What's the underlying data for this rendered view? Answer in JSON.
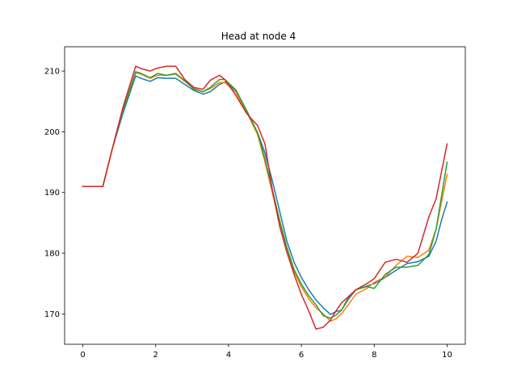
{
  "chart_data": {
    "type": "line",
    "title": "Head at node 4",
    "xlabel": "",
    "ylabel": "",
    "xlim": [
      -0.5,
      10.5
    ],
    "ylim": [
      165,
      214
    ],
    "xticks": [
      0,
      2,
      4,
      6,
      8,
      10
    ],
    "yticks": [
      170,
      180,
      190,
      200,
      210
    ],
    "grid": false,
    "series": [
      {
        "color": "#1f77b4",
        "x": [
          0,
          0.55,
          0.8,
          1.1,
          1.45,
          1.6,
          1.85,
          2.05,
          2.3,
          2.55,
          2.8,
          3.05,
          3.3,
          3.5,
          3.75,
          3.9,
          4.2,
          4.5,
          4.8,
          5.0,
          5.2,
          5.4,
          5.6,
          5.8,
          6.0,
          6.2,
          6.4,
          6.6,
          6.8,
          6.95,
          7.1,
          7.3,
          7.5,
          7.8,
          8.0,
          8.3,
          8.6,
          8.9,
          9.2,
          9.5,
          9.7,
          9.85,
          10.0
        ],
        "values": [
          191,
          191,
          197,
          203,
          209.2,
          208.8,
          208.3,
          208.9,
          208.8,
          208.8,
          207.8,
          206.8,
          206.2,
          206.6,
          207.8,
          208.2,
          206.8,
          203.5,
          199.8,
          196.5,
          192,
          187,
          182,
          178.5,
          176,
          174,
          172.3,
          171,
          169.9,
          170.4,
          170.6,
          172.5,
          174,
          174.6,
          175,
          176,
          177.2,
          178.3,
          178.6,
          179.5,
          182,
          185.5,
          188.4
        ]
      },
      {
        "color": "#ff7f0e",
        "x": [
          0,
          0.55,
          0.8,
          1.1,
          1.45,
          1.6,
          1.85,
          2.05,
          2.3,
          2.55,
          2.8,
          3.05,
          3.3,
          3.5,
          3.75,
          3.9,
          4.2,
          4.5,
          4.8,
          5.0,
          5.2,
          5.4,
          5.6,
          5.8,
          6.0,
          6.2,
          6.4,
          6.6,
          6.8,
          6.95,
          7.1,
          7.3,
          7.5,
          7.8,
          8.0,
          8.3,
          8.6,
          8.9,
          9.2,
          9.5,
          9.7,
          9.85,
          10.0
        ],
        "values": [
          191,
          191,
          197,
          203.5,
          209.7,
          209.5,
          208.8,
          209.3,
          209.3,
          209.5,
          208.3,
          207.1,
          206.6,
          207.1,
          208.1,
          208.1,
          206.5,
          203.2,
          199.5,
          195,
          190,
          185,
          180.5,
          177,
          174.5,
          172.5,
          171,
          170,
          168.8,
          169.2,
          170,
          171.6,
          173.3,
          174.2,
          175.2,
          176.1,
          178,
          179.5,
          179.3,
          180.5,
          184,
          188.5,
          193
        ]
      },
      {
        "color": "#2ca02c",
        "x": [
          0,
          0.55,
          0.8,
          1.1,
          1.45,
          1.6,
          1.85,
          2.05,
          2.3,
          2.55,
          2.8,
          3.05,
          3.3,
          3.5,
          3.75,
          3.9,
          4.2,
          4.5,
          4.8,
          5.0,
          5.2,
          5.4,
          5.6,
          5.8,
          6.0,
          6.2,
          6.4,
          6.6,
          6.8,
          6.95,
          7.1,
          7.3,
          7.5,
          7.8,
          8.0,
          8.3,
          8.6,
          8.9,
          9.2,
          9.5,
          9.7,
          9.85,
          10.0
        ],
        "values": [
          191,
          191,
          197,
          203.5,
          209.9,
          209.6,
          208.9,
          209.6,
          209.3,
          209.6,
          208.4,
          207,
          206.6,
          207.3,
          208.6,
          208.6,
          206.9,
          203.4,
          199.8,
          195.5,
          190.5,
          185.5,
          181,
          177.3,
          174.9,
          173,
          171.5,
          169.7,
          169.3,
          169.8,
          170.6,
          172.8,
          174,
          174.5,
          174.2,
          176.5,
          177.7,
          177.7,
          178,
          179.8,
          184,
          189.5,
          195
        ]
      },
      {
        "color": "#d62728",
        "x": [
          0,
          0.55,
          0.8,
          1.1,
          1.45,
          1.6,
          1.85,
          2.05,
          2.3,
          2.55,
          2.8,
          3.05,
          3.3,
          3.5,
          3.75,
          3.9,
          4.2,
          4.5,
          4.8,
          5.0,
          5.2,
          5.4,
          5.6,
          5.8,
          6.0,
          6.2,
          6.4,
          6.6,
          6.8,
          6.95,
          7.1,
          7.3,
          7.5,
          7.8,
          8.0,
          8.3,
          8.6,
          8.9,
          9.2,
          9.5,
          9.7,
          9.85,
          10.0
        ],
        "values": [
          191,
          191,
          197,
          204,
          210.8,
          210.4,
          210,
          210.5,
          210.8,
          210.8,
          208.6,
          207.3,
          207,
          208.5,
          209.3,
          208.6,
          206,
          203,
          201,
          198,
          190.5,
          184.5,
          180.2,
          176.5,
          173.2,
          170.5,
          167.5,
          167.8,
          169,
          170.5,
          171.8,
          172.9,
          174,
          175,
          175.8,
          178.5,
          179,
          178.5,
          180,
          186,
          189,
          193.5,
          198
        ]
      }
    ]
  }
}
